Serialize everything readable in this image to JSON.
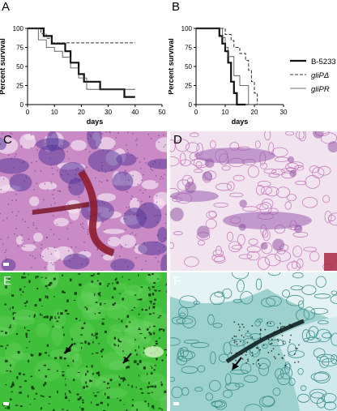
{
  "panels": {
    "a": {
      "letter": "A"
    },
    "b": {
      "letter": "B"
    },
    "c": {
      "letter": "C"
    },
    "d": {
      "letter": "D"
    },
    "e": {
      "letter": "E"
    },
    "f": {
      "letter": "F"
    }
  },
  "chart_data": [
    {
      "type": "line",
      "panel": "A",
      "title": "",
      "xlabel": "days",
      "ylabel": "Percent survival",
      "xlim": [
        0,
        50
      ],
      "ylim": [
        0,
        100
      ],
      "xticks": [
        "0",
        "10",
        "20",
        "30",
        "40",
        "50"
      ],
      "yticks": [
        "0",
        "25",
        "50",
        "75",
        "100"
      ],
      "series": [
        {
          "style": "thick",
          "x": [
            0,
            6,
            6,
            9,
            9,
            14,
            14,
            16,
            16,
            19,
            19,
            21,
            21,
            27,
            27,
            36,
            36,
            40
          ],
          "y": [
            100,
            100,
            90,
            90,
            80,
            80,
            70,
            70,
            55,
            55,
            40,
            40,
            30,
            30,
            20,
            20,
            10,
            10
          ]
        },
        {
          "style": "dashed",
          "x": [
            0,
            5,
            5,
            7,
            7,
            9,
            9,
            40
          ],
          "y": [
            100,
            100,
            93,
            93,
            87,
            87,
            81,
            81
          ]
        },
        {
          "style": "thin",
          "x": [
            0,
            4,
            4,
            7,
            7,
            10,
            10,
            13,
            13,
            16,
            16,
            19,
            19,
            22,
            22,
            40
          ],
          "y": [
            100,
            100,
            85,
            85,
            75,
            75,
            70,
            70,
            62,
            62,
            48,
            48,
            35,
            35,
            20,
            20
          ]
        }
      ]
    },
    {
      "type": "line",
      "panel": "B",
      "title": "",
      "xlabel": "days",
      "ylabel": "Percent survival",
      "xlim": [
        0,
        30
      ],
      "ylim": [
        0,
        100
      ],
      "xticks": [
        "0",
        "10",
        "20",
        "30"
      ],
      "yticks": [
        "0",
        "25",
        "50",
        "75",
        "100"
      ],
      "legend_position": "right",
      "series": [
        {
          "name": "B-5233",
          "style": "thick",
          "x": [
            0,
            8,
            8,
            9,
            9,
            10,
            10,
            11,
            11,
            12,
            12,
            13,
            13,
            14,
            14,
            17
          ],
          "y": [
            100,
            100,
            90,
            90,
            80,
            80,
            70,
            70,
            55,
            55,
            30,
            30,
            15,
            15,
            0,
            0
          ]
        },
        {
          "name": "gliPΔ",
          "style": "dashed",
          "x": [
            0,
            10,
            10,
            12,
            12,
            13,
            13,
            15,
            15,
            17,
            17,
            18,
            18,
            19,
            19,
            20,
            20,
            21,
            21,
            22
          ],
          "y": [
            100,
            100,
            92,
            92,
            84,
            84,
            75,
            75,
            67,
            67,
            58,
            58,
            45,
            45,
            30,
            30,
            15,
            15,
            0,
            0
          ]
        },
        {
          "name": "gliPR",
          "style": "thin",
          "x": [
            0,
            9,
            9,
            10,
            10,
            11,
            11,
            13,
            13,
            15,
            15,
            18,
            18,
            20
          ],
          "y": [
            100,
            100,
            88,
            88,
            75,
            75,
            63,
            63,
            38,
            38,
            25,
            25,
            0,
            0
          ]
        }
      ]
    }
  ],
  "chart_style": {
    "line_color": "#111111",
    "dash_color": "#333333",
    "thin_color": "#444444"
  },
  "micrographs": {
    "c": {
      "stain": "H&E",
      "base": "#c98ac5",
      "accent": "#5a3b9a"
    },
    "d": {
      "stain": "H&E",
      "base": "#f2e4ef",
      "accent": "#8a4aa0"
    },
    "e": {
      "stain": "GMS",
      "base": "#3fbf3a",
      "accent": "#0d2a0a"
    },
    "f": {
      "stain": "GMS",
      "base": "#9dd1cd",
      "accent": "#0f2020"
    }
  }
}
